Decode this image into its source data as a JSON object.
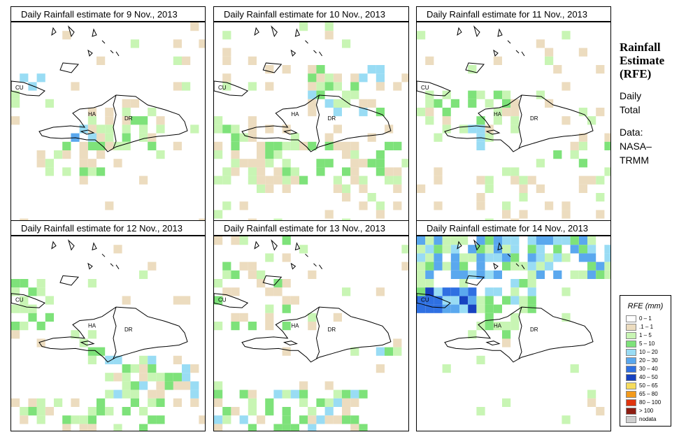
{
  "panels": [
    {
      "title": "Daily Rainfall estimate for  9 Nov., 2013",
      "seed": 11,
      "profile": "d9"
    },
    {
      "title": "Daily Rainfall estimate for  10 Nov., 2013",
      "seed": 23,
      "profile": "d10"
    },
    {
      "title": "Daily Rainfall estimate for  11 Nov., 2013",
      "seed": 37,
      "profile": "d11"
    },
    {
      "title": "Daily Rainfall estimate for  12 Nov., 2013",
      "seed": 41,
      "profile": "d12"
    },
    {
      "title": "Daily Rainfall estimate for  13 Nov., 2013",
      "seed": 53,
      "profile": "d13"
    },
    {
      "title": "Daily Rainfall estimate for  14 Nov., 2013",
      "seed": 67,
      "profile": "d14"
    }
  ],
  "map_labels": {
    "cuba": "CU",
    "haiti": "HA",
    "dr": "DR"
  },
  "side": {
    "title_lines": [
      "Rainfall",
      "Estimate",
      "(RFE)"
    ],
    "daily_lines": [
      "Daily",
      "Total"
    ],
    "data_lines": [
      "Data:",
      "NASA–",
      "TRMM"
    ]
  },
  "legend": {
    "title": "RFE (mm)",
    "items": [
      {
        "label": "0 – 1",
        "color": "#ffffff"
      },
      {
        "label": ".1 – 1",
        "color": "#ecdcbf"
      },
      {
        "label": "1 – 5",
        "color": "#c8f5b4"
      },
      {
        "label": "5 – 10",
        "color": "#7ee27a"
      },
      {
        "label": "10 – 20",
        "color": "#99dcf4"
      },
      {
        "label": "20 – 30",
        "color": "#5aa8ee"
      },
      {
        "label": "30 – 40",
        "color": "#2f70e2"
      },
      {
        "label": "40 – 50",
        "color": "#1742c0"
      },
      {
        "label": "50 – 65",
        "color": "#f6dc5c"
      },
      {
        "label": "65 – 80",
        "color": "#f39a1c"
      },
      {
        "label": "80 – 100",
        "color": "#e0340e"
      },
      {
        "label": "> 100",
        "color": "#8e1d12"
      },
      {
        "label": "nodata",
        "color": "#cfcfcf"
      }
    ]
  }
}
